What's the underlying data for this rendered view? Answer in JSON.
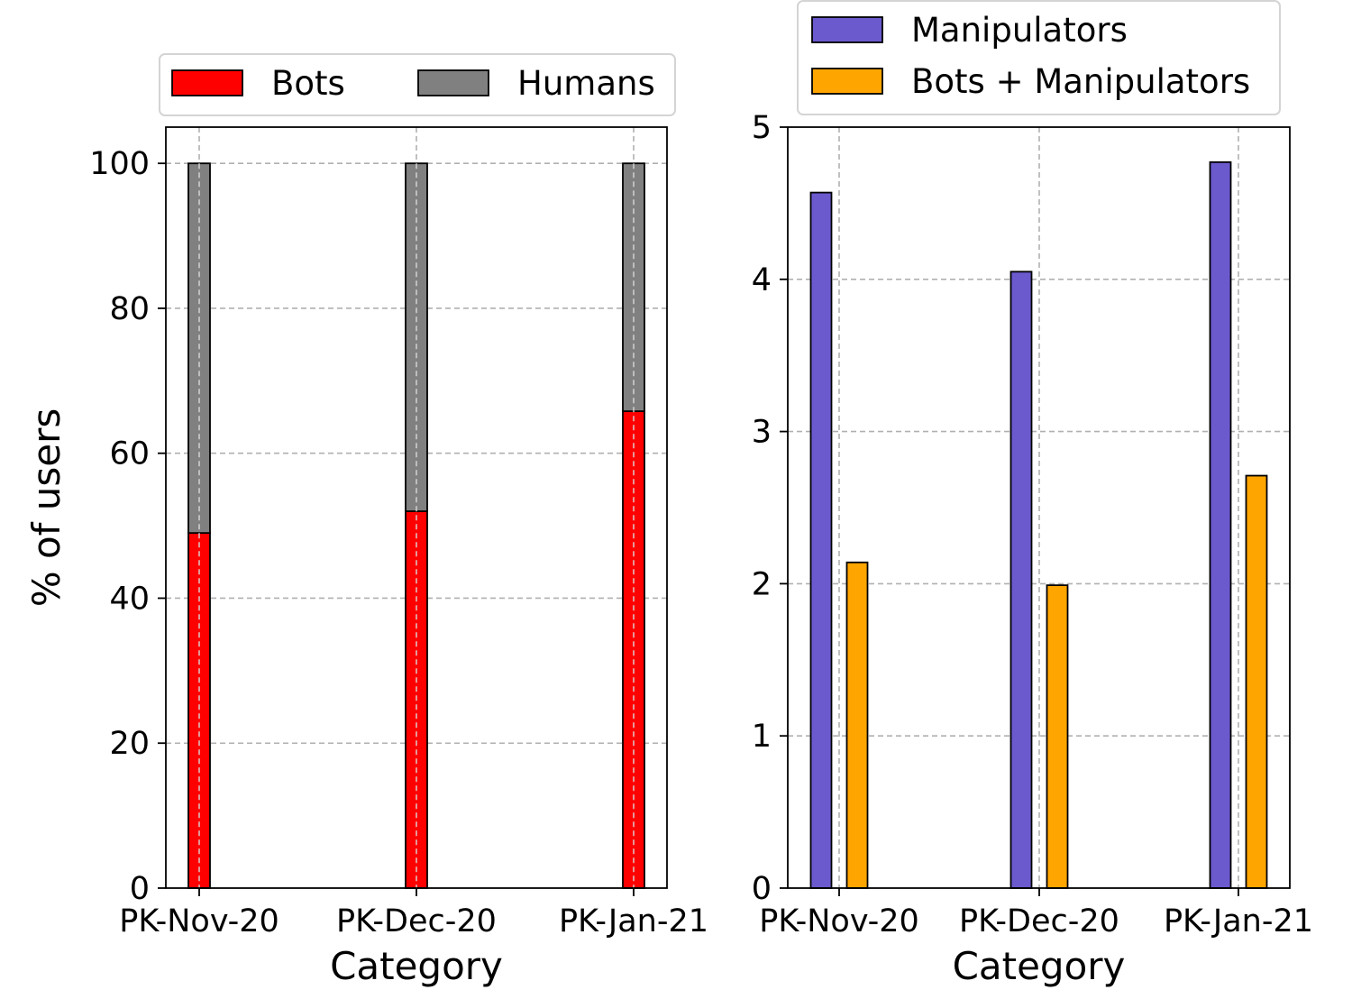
{
  "chart_data": [
    {
      "type": "bar",
      "stacked": true,
      "categories": [
        "PK-Nov-20",
        "PK-Dec-20",
        "PK-Jan-21"
      ],
      "series": [
        {
          "name": "Bots",
          "values": [
            49,
            52,
            65.8
          ],
          "color": "#ff0000"
        },
        {
          "name": "Humans",
          "values": [
            51,
            48,
            34.2
          ],
          "color": "#808080"
        }
      ],
      "xlabel": "Category",
      "ylabel": "% of users",
      "ylim": [
        0,
        105
      ],
      "yticks": [
        0,
        20,
        40,
        60,
        80,
        100
      ],
      "grid": true,
      "legend": "top, outside"
    },
    {
      "type": "bar",
      "stacked": false,
      "categories": [
        "PK-Nov-20",
        "PK-Dec-20",
        "PK-Jan-21"
      ],
      "series": [
        {
          "name": "Manipulators",
          "values": [
            4.57,
            4.05,
            4.77
          ],
          "color": "#6a5acd"
        },
        {
          "name": "Bots + Manipulators",
          "values": [
            2.14,
            1.99,
            2.71
          ],
          "color": "#ffa500"
        }
      ],
      "xlabel": "Category",
      "ylabel": "",
      "ylim": [
        0,
        5
      ],
      "yticks": [
        0,
        1,
        2,
        3,
        4,
        5
      ],
      "grid": true,
      "legend": "top, outside"
    }
  ]
}
